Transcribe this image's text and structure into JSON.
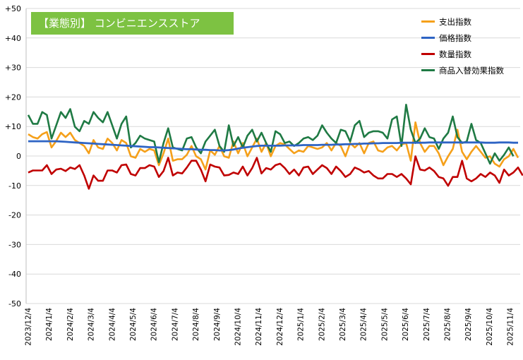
{
  "chart_data": {
    "type": "line",
    "title": "【業態別】 コンビニエンスストア",
    "xlabel": "",
    "ylabel": "",
    "ylim": [
      -50,
      50
    ],
    "yticks": [
      "+50",
      "+40",
      "+30",
      "+20",
      "+10",
      "0",
      "-10",
      "-20",
      "-30",
      "-40",
      "-50"
    ],
    "xtick_labels": [
      "2023/12/4",
      "2024/1/4",
      "2024/2/4",
      "2024/3/4",
      "2024/4/4",
      "2024/5/4",
      "2024/6/4",
      "2024/7/4",
      "2024/8/4",
      "2024/9/4",
      "2024/10/4",
      "2024/11/4",
      "2024/12/4",
      "2025/1/4",
      "2025/2/4",
      "2025/3/4",
      "2025/4/4",
      "2025/5/4",
      "2025/6/4",
      "2025/7/4",
      "2025/8/4",
      "2025/9/4",
      "2025/10/4",
      "2025/11/4"
    ],
    "grid": true,
    "legend_position": "top-right",
    "series": [
      {
        "name": "支出指数",
        "color": "#f5a01a",
        "values": [
          7.4,
          6.4,
          5.9,
          7.4,
          8.1,
          2.9,
          5.1,
          7.9,
          6.4,
          7.9,
          5.4,
          4.4,
          3.4,
          0.9,
          5.4,
          2.9,
          2.4,
          5.9,
          4.4,
          1.9,
          5.4,
          4.4,
          -0.1,
          -0.6,
          2.4,
          1.4,
          2.4,
          1.9,
          -3.1,
          0.9,
          5.9,
          -1.6,
          -1.1,
          -1.1,
          0.4,
          3.4,
          -0.1,
          -1.1,
          -4.6,
          1.9,
          0.4,
          3.4,
          -0.1,
          -0.6,
          4.9,
          0.9,
          4.4,
          -0.1,
          2.9,
          5.9,
          1.4,
          4.4,
          -0.1,
          3.4,
          4.4,
          3.9,
          2.4,
          0.9,
          1.9,
          1.4,
          3.4,
          2.9,
          2.4,
          2.9,
          4.4,
          1.9,
          4.4,
          3.4,
          -0.1,
          4.4,
          2.9,
          4.4,
          0.9,
          4.4,
          4.9,
          1.9,
          1.4,
          2.9,
          3.4,
          1.9,
          3.9,
          4.4,
          -1.6,
          11.4,
          4.4,
          1.4,
          3.4,
          3.4,
          0.9,
          -3.1,
          -0.1,
          2.4,
          8.9,
          1.4,
          -1.1,
          1.4,
          3.4,
          1.4,
          -0.6,
          -0.1,
          -2.6,
          -3.6,
          -1.1,
          -0.1,
          2.4,
          -0.6
        ]
      },
      {
        "name": "価格指数",
        "color": "#2e64c4",
        "values": [
          5.0,
          5.0,
          5.0,
          5.0,
          5.0,
          5.0,
          5.0,
          4.9,
          4.8,
          4.7,
          4.6,
          4.5,
          4.4,
          4.3,
          4.2,
          4.1,
          4.0,
          3.9,
          3.8,
          3.7,
          3.6,
          3.5,
          3.4,
          3.3,
          3.2,
          3.1,
          3.0,
          3.0,
          2.9,
          2.8,
          2.7,
          2.6,
          2.5,
          2.4,
          2.3,
          2.3,
          2.2,
          2.1,
          2.1,
          2.0,
          2.0,
          1.9,
          1.9,
          2.0,
          2.2,
          2.5,
          2.8,
          3.0,
          3.2,
          3.4,
          3.5,
          3.5,
          3.5,
          3.5,
          3.5,
          3.6,
          3.6,
          3.6,
          3.6,
          3.7,
          3.7,
          3.7,
          3.7,
          3.8,
          3.8,
          3.8,
          3.9,
          3.9,
          4.0,
          4.0,
          4.1,
          4.1,
          4.2,
          4.2,
          4.3,
          4.3,
          4.4,
          4.4,
          4.4,
          4.4,
          4.5,
          4.5,
          4.5,
          4.5,
          4.5,
          4.5,
          4.6,
          4.6,
          4.6,
          4.6,
          4.6,
          4.6,
          4.6,
          4.6,
          4.6,
          4.6,
          4.6,
          4.6,
          4.5,
          4.5,
          4.5,
          4.6,
          4.6,
          4.6,
          4.5,
          4.5
        ]
      },
      {
        "name": "数量指数",
        "color": "#c00000",
        "values": [
          -5.6,
          -4.9,
          -4.9,
          -4.9,
          -3.1,
          -6.1,
          -4.6,
          -4.3,
          -5.1,
          -3.9,
          -4.4,
          -3.1,
          -6.6,
          -11.1,
          -6.6,
          -8.4,
          -8.4,
          -4.9,
          -4.9,
          -5.6,
          -3.1,
          -2.9,
          -6.1,
          -6.6,
          -4.1,
          -4.1,
          -3.1,
          -3.6,
          -7.1,
          -5.1,
          -0.6,
          -6.6,
          -5.6,
          -5.9,
          -3.9,
          -1.6,
          -1.6,
          -4.6,
          -8.6,
          -2.9,
          -3.6,
          -3.9,
          -6.6,
          -6.4,
          -5.6,
          -6.1,
          -3.6,
          -6.6,
          -4.1,
          -0.6,
          -5.9,
          -4.1,
          -4.6,
          -3.1,
          -2.6,
          -4.1,
          -6.1,
          -4.6,
          -6.6,
          -3.9,
          -3.6,
          -6.1,
          -4.6,
          -3.1,
          -4.1,
          -6.1,
          -3.6,
          -5.1,
          -7.1,
          -6.1,
          -3.9,
          -4.6,
          -5.6,
          -5.1,
          -6.6,
          -7.6,
          -7.6,
          -6.1,
          -6.1,
          -7.1,
          -6.1,
          -7.6,
          -9.6,
          -0.1,
          -4.6,
          -4.9,
          -3.9,
          -5.1,
          -7.1,
          -7.6,
          -10.1,
          -7.1,
          -7.1,
          -1.6,
          -7.6,
          -8.6,
          -7.6,
          -6.1,
          -7.1,
          -5.6,
          -6.6,
          -9.1,
          -4.6,
          -6.6,
          -5.6,
          -3.9,
          -6.6
        ]
      },
      {
        "name": "商品入替効果指数",
        "color": "#1f7a44",
        "values": [
          13.9,
          10.9,
          10.9,
          14.9,
          13.9,
          5.9,
          10.4,
          14.9,
          12.9,
          15.9,
          9.9,
          8.4,
          11.9,
          10.9,
          14.9,
          12.9,
          11.4,
          14.9,
          10.4,
          5.9,
          10.9,
          13.4,
          2.9,
          4.4,
          6.9,
          5.9,
          5.4,
          4.9,
          -2.1,
          4.4,
          9.4,
          2.9,
          2.4,
          1.9,
          5.9,
          6.4,
          2.9,
          0.9,
          4.9,
          6.9,
          8.9,
          3.4,
          1.4,
          10.4,
          3.4,
          6.4,
          2.9,
          6.9,
          8.9,
          4.9,
          7.9,
          4.4,
          1.4,
          8.4,
          7.4,
          4.4,
          4.9,
          3.4,
          4.4,
          5.9,
          6.4,
          5.4,
          6.9,
          10.4,
          7.9,
          5.9,
          4.4,
          8.9,
          8.4,
          4.9,
          10.4,
          11.9,
          6.4,
          7.9,
          8.4,
          8.4,
          7.9,
          5.9,
          12.4,
          13.4,
          3.4,
          17.4,
          8.9,
          4.4,
          5.9,
          9.4,
          6.4,
          5.9,
          2.4,
          5.9,
          7.9,
          13.4,
          6.4,
          4.4,
          4.9,
          10.9,
          5.4,
          4.4,
          0.9,
          -2.6,
          0.9,
          -1.6,
          0.4,
          2.9,
          -0.1
        ]
      }
    ]
  }
}
